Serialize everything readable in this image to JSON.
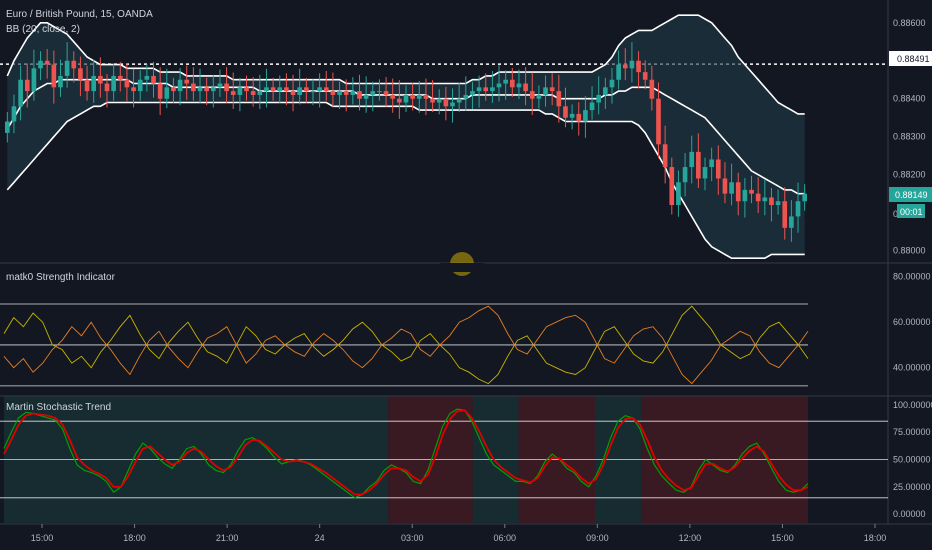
{
  "header": {
    "symbol_title": "Euro / British Pound, 15, OANDA",
    "indicator_label": "BB (20, close, 2)"
  },
  "colors": {
    "background": "#131722",
    "up": "#26a69a",
    "down": "#ef5350",
    "band": "#ffffff",
    "band_fill": "#1f3a48",
    "grid": "#ffffff",
    "matk_line_a": "#c8b400",
    "matk_line_b": "#e67e22",
    "stoch_green": "#00a000",
    "stoch_red": "#e00000",
    "bear_zone": "#3a1a22",
    "bull_zone": "#162c30"
  },
  "price_axis": {
    "ticks": [
      "0.88600",
      "0.88491",
      "0.88400",
      "0.88300",
      "0.88200",
      "0.88149",
      "0",
      "00:01",
      "0.88000"
    ],
    "price_ticks": [
      0.886,
      0.884,
      0.883,
      0.882,
      0.88
    ],
    "current_price": "0.88149",
    "current_price_value": 0.88149,
    "countdown": "00:01",
    "reference_label": "0.88491",
    "reference_value": 0.88491,
    "zero_label": "0"
  },
  "time_axis": {
    "labels": [
      "15:00",
      "18:00",
      "21:00",
      "24",
      "03:00",
      "06:00",
      "09:00",
      "12:00",
      "15:00",
      "18:00"
    ]
  },
  "chart_data": [
    {
      "type": "candlestick",
      "title": "Euro / British Pound, 15, OANDA",
      "ylim": [
        0.8797,
        0.8866
      ],
      "overlays": [
        "BB (20, close, 2)"
      ],
      "close_series": [
        0.8834,
        0.8838,
        0.8845,
        0.8842,
        0.8848,
        0.885,
        0.8849,
        0.8843,
        0.8846,
        0.885,
        0.8848,
        0.8845,
        0.8842,
        0.8846,
        0.8844,
        0.8842,
        0.8846,
        0.8845,
        0.8843,
        0.8842,
        0.8845,
        0.8846,
        0.8844,
        0.884,
        0.8843,
        0.8842,
        0.8845,
        0.8844,
        0.8842,
        0.8843,
        0.8842,
        0.8843,
        0.8844,
        0.8842,
        0.8841,
        0.8843,
        0.8842,
        0.8841,
        0.8842,
        0.8843,
        0.8842,
        0.8843,
        0.8842,
        0.8841,
        0.8843,
        0.8842,
        0.8842,
        0.8843,
        0.8842,
        0.8841,
        0.8842,
        0.8841,
        0.8842,
        0.884,
        0.8841,
        0.8842,
        0.8842,
        0.8841,
        0.884,
        0.8839,
        0.8841,
        0.884,
        0.8841,
        0.884,
        0.8839,
        0.884,
        0.8838,
        0.8839,
        0.884,
        0.8841,
        0.8842,
        0.8843,
        0.8842,
        0.8843,
        0.8844,
        0.8845,
        0.8843,
        0.8844,
        0.8842,
        0.884,
        0.8841,
        0.8843,
        0.8842,
        0.8838,
        0.8835,
        0.8836,
        0.8834,
        0.8837,
        0.8839,
        0.8841,
        0.8843,
        0.8845,
        0.8849,
        0.8848,
        0.885,
        0.8847,
        0.8845,
        0.884,
        0.8828,
        0.8822,
        0.8812,
        0.8818,
        0.8822,
        0.8826,
        0.8819,
        0.8822,
        0.8824,
        0.8819,
        0.8815,
        0.8818,
        0.8813,
        0.8816,
        0.8815,
        0.8813,
        0.8814,
        0.8812,
        0.8813,
        0.8806,
        0.8809,
        0.8813,
        0.8815
      ],
      "bb_upper": [
        0.8846,
        0.885,
        0.8853,
        0.8856,
        0.8858,
        0.886,
        0.886,
        0.8859,
        0.8858,
        0.8857,
        0.8855,
        0.8853,
        0.8851,
        0.885,
        0.8849,
        0.8849,
        0.8849,
        0.8849,
        0.8848,
        0.8848,
        0.8848,
        0.8848,
        0.8848,
        0.8847,
        0.8847,
        0.8847,
        0.8847,
        0.8846,
        0.8846,
        0.8846,
        0.8846,
        0.8846,
        0.8846,
        0.8846,
        0.8845,
        0.8845,
        0.8845,
        0.8845,
        0.8845,
        0.8845,
        0.8845,
        0.8845,
        0.8845,
        0.8845,
        0.8845,
        0.8845,
        0.8845,
        0.8845,
        0.8845,
        0.8845,
        0.8845,
        0.8844,
        0.8844,
        0.8844,
        0.8844,
        0.8844,
        0.8844,
        0.8844,
        0.8844,
        0.8844,
        0.8844,
        0.8844,
        0.8844,
        0.8844,
        0.8844,
        0.8844,
        0.8844,
        0.8844,
        0.8844,
        0.8844,
        0.8845,
        0.8845,
        0.8846,
        0.8846,
        0.8847,
        0.8847,
        0.8847,
        0.8847,
        0.8847,
        0.8847,
        0.8847,
        0.8847,
        0.8847,
        0.8847,
        0.8847,
        0.8847,
        0.8847,
        0.8847,
        0.8847,
        0.8848,
        0.8849,
        0.8851,
        0.8854,
        0.8856,
        0.8857,
        0.8858,
        0.8858,
        0.8858,
        0.8859,
        0.886,
        0.8861,
        0.8862,
        0.8862,
        0.8862,
        0.8862,
        0.8861,
        0.886,
        0.8858,
        0.8856,
        0.8854,
        0.8851,
        0.8849,
        0.8847,
        0.8845,
        0.8843,
        0.8841,
        0.8839,
        0.8838,
        0.8837,
        0.8836,
        0.8836
      ],
      "bb_middle": [
        0.8832,
        0.8835,
        0.8838,
        0.884,
        0.8842,
        0.8843,
        0.8844,
        0.8844,
        0.8845,
        0.8845,
        0.8845,
        0.8845,
        0.8845,
        0.8845,
        0.8845,
        0.8845,
        0.8845,
        0.8845,
        0.8845,
        0.8844,
        0.8844,
        0.8844,
        0.8844,
        0.8844,
        0.8844,
        0.8843,
        0.8843,
        0.8843,
        0.8843,
        0.8843,
        0.8843,
        0.8843,
        0.8843,
        0.8843,
        0.8843,
        0.8843,
        0.8843,
        0.8843,
        0.8842,
        0.8842,
        0.8842,
        0.8842,
        0.8842,
        0.8842,
        0.8842,
        0.8842,
        0.8842,
        0.8842,
        0.8842,
        0.8842,
        0.8842,
        0.8842,
        0.8842,
        0.8841,
        0.8841,
        0.8841,
        0.8841,
        0.8841,
        0.8841,
        0.8841,
        0.8841,
        0.8841,
        0.8841,
        0.8841,
        0.884,
        0.884,
        0.884,
        0.884,
        0.884,
        0.884,
        0.8841,
        0.8841,
        0.8841,
        0.8841,
        0.8841,
        0.8841,
        0.8841,
        0.8841,
        0.8841,
        0.8841,
        0.8841,
        0.8841,
        0.8841,
        0.884,
        0.884,
        0.884,
        0.884,
        0.884,
        0.884,
        0.884,
        0.8841,
        0.8841,
        0.8842,
        0.8842,
        0.8843,
        0.8843,
        0.8843,
        0.8843,
        0.8842,
        0.8841,
        0.884,
        0.8839,
        0.8838,
        0.8837,
        0.8836,
        0.8835,
        0.8833,
        0.8831,
        0.8829,
        0.8827,
        0.8825,
        0.8823,
        0.8821,
        0.882,
        0.8819,
        0.8818,
        0.8817,
        0.8816,
        0.8816,
        0.8815,
        0.8815
      ],
      "bb_lower": [
        0.8816,
        0.8818,
        0.882,
        0.8822,
        0.8824,
        0.8826,
        0.8828,
        0.883,
        0.8832,
        0.8834,
        0.8835,
        0.8836,
        0.8837,
        0.8838,
        0.8838,
        0.8839,
        0.8839,
        0.8839,
        0.8839,
        0.8839,
        0.8839,
        0.8839,
        0.8839,
        0.8839,
        0.8839,
        0.8839,
        0.8839,
        0.8839,
        0.8839,
        0.8839,
        0.8839,
        0.8839,
        0.8839,
        0.8839,
        0.8839,
        0.8839,
        0.8839,
        0.8839,
        0.8839,
        0.8839,
        0.8839,
        0.8839,
        0.8839,
        0.8839,
        0.8839,
        0.8839,
        0.8839,
        0.8839,
        0.8839,
        0.8838,
        0.8838,
        0.8838,
        0.8838,
        0.8838,
        0.8838,
        0.8838,
        0.8838,
        0.8838,
        0.8838,
        0.8838,
        0.8838,
        0.8838,
        0.8837,
        0.8837,
        0.8837,
        0.8837,
        0.8837,
        0.8837,
        0.8837,
        0.8837,
        0.8837,
        0.8837,
        0.8837,
        0.8837,
        0.8837,
        0.8837,
        0.8837,
        0.8837,
        0.8837,
        0.8837,
        0.8837,
        0.8836,
        0.8836,
        0.8835,
        0.8834,
        0.8834,
        0.8834,
        0.8834,
        0.8834,
        0.8834,
        0.8834,
        0.8834,
        0.8834,
        0.8834,
        0.8834,
        0.8833,
        0.8831,
        0.8828,
        0.8825,
        0.8822,
        0.8818,
        0.8815,
        0.8812,
        0.8809,
        0.8806,
        0.8803,
        0.8801,
        0.88,
        0.8799,
        0.8798,
        0.8798,
        0.8798,
        0.8798,
        0.8798,
        0.8798,
        0.8799,
        0.8799,
        0.8799,
        0.8799,
        0.8799,
        0.8799
      ]
    },
    {
      "type": "line",
      "title": "matk0 Strength Indicator",
      "ylim": [
        28,
        86
      ],
      "y_ticks": [
        40,
        60,
        80
      ],
      "y_tick_labels": [
        "40.00000",
        "60.00000",
        "80.00000"
      ],
      "levels": [
        32,
        50,
        68
      ],
      "series": [
        {
          "values": [
            55,
            62,
            58,
            64,
            60,
            50,
            48,
            42,
            45,
            40,
            47,
            52,
            58,
            63,
            55,
            48,
            44,
            51,
            56,
            60,
            53,
            47,
            45,
            42,
            50,
            58,
            54,
            48,
            46,
            50,
            53,
            55,
            49,
            45,
            48,
            52,
            57,
            60,
            56,
            50,
            47,
            43,
            45,
            52,
            55,
            50,
            46,
            40,
            38,
            35,
            33,
            37,
            45,
            52,
            54,
            48,
            42,
            40,
            38,
            37,
            40,
            48,
            56,
            58,
            52,
            46,
            43,
            42,
            47,
            55,
            63,
            67,
            62,
            57,
            50,
            47,
            44,
            46,
            53,
            58,
            60,
            55,
            50,
            44
          ]
        },
        {
          "values": [
            45,
            40,
            44,
            38,
            42,
            48,
            52,
            58,
            54,
            60,
            53,
            48,
            42,
            37,
            45,
            52,
            56,
            49,
            44,
            40,
            47,
            53,
            55,
            58,
            50,
            42,
            46,
            52,
            54,
            50,
            47,
            45,
            51,
            55,
            52,
            48,
            43,
            40,
            44,
            50,
            53,
            57,
            55,
            48,
            45,
            50,
            54,
            60,
            62,
            65,
            67,
            63,
            55,
            48,
            46,
            52,
            58,
            60,
            62,
            63,
            60,
            52,
            44,
            42,
            48,
            54,
            57,
            58,
            53,
            45,
            37,
            33,
            38,
            43,
            50,
            53,
            56,
            54,
            47,
            42,
            40,
            45,
            50,
            56
          ]
        }
      ]
    },
    {
      "type": "line",
      "title": "Martin Stochastic Trend",
      "ylim": [
        -8,
        108
      ],
      "y_ticks": [
        0,
        25,
        50,
        75,
        100
      ],
      "y_tick_labels": [
        "0.00000",
        "25.00000",
        "50.00000",
        "75.00000",
        "100.00000"
      ],
      "levels": [
        15,
        50,
        85
      ],
      "series": [
        {
          "values": [
            60,
            75,
            88,
            93,
            92,
            90,
            88,
            86,
            78,
            60,
            45,
            40,
            38,
            35,
            30,
            20,
            25,
            40,
            55,
            65,
            60,
            52,
            46,
            42,
            50,
            60,
            62,
            55,
            45,
            40,
            38,
            45,
            58,
            68,
            70,
            66,
            60,
            52,
            46,
            48,
            50,
            48,
            45,
            40,
            35,
            30,
            25,
            20,
            15,
            18,
            25,
            30,
            40,
            45,
            42,
            38,
            30,
            28,
            40,
            60,
            80,
            92,
            96,
            95,
            85,
            70,
            55,
            45,
            40,
            35,
            30,
            30,
            28,
            35,
            48,
            55,
            50,
            42,
            38,
            30,
            25,
            35,
            50,
            70,
            85,
            90,
            88,
            78,
            60,
            45,
            35,
            28,
            22,
            20,
            25,
            40,
            50,
            45,
            40,
            38,
            45,
            55,
            62,
            65,
            55,
            42,
            30,
            22,
            20,
            22,
            28
          ]
        },
        {
          "values": [
            55,
            68,
            82,
            90,
            92,
            91,
            90,
            88,
            82,
            68,
            52,
            45,
            40,
            37,
            33,
            25,
            25,
            35,
            48,
            60,
            62,
            56,
            50,
            45,
            48,
            56,
            60,
            57,
            50,
            44,
            40,
            43,
            52,
            63,
            68,
            67,
            62,
            56,
            50,
            48,
            49,
            48,
            46,
            42,
            38,
            33,
            28,
            23,
            18,
            18,
            22,
            28,
            36,
            42,
            42,
            40,
            34,
            30,
            36,
            52,
            72,
            87,
            94,
            95,
            88,
            76,
            62,
            50,
            43,
            38,
            33,
            31,
            29,
            33,
            44,
            52,
            51,
            45,
            40,
            33,
            28,
            32,
            45,
            63,
            79,
            87,
            88,
            82,
            68,
            52,
            40,
            32,
            26,
            22,
            24,
            35,
            46,
            46,
            42,
            39,
            43,
            51,
            58,
            62,
            57,
            46,
            35,
            27,
            22,
            22,
            25
          ]
        }
      ],
      "zones": [
        {
          "from": 0,
          "to": 0.478,
          "state": "bull"
        },
        {
          "from": 0.478,
          "to": 0.583,
          "state": "bear"
        },
        {
          "from": 0.583,
          "to": 0.64,
          "state": "bull"
        },
        {
          "from": 0.64,
          "to": 0.735,
          "state": "bear"
        },
        {
          "from": 0.735,
          "to": 0.793,
          "state": "bull"
        },
        {
          "from": 0.793,
          "to": 1,
          "state": "bear"
        }
      ]
    }
  ]
}
